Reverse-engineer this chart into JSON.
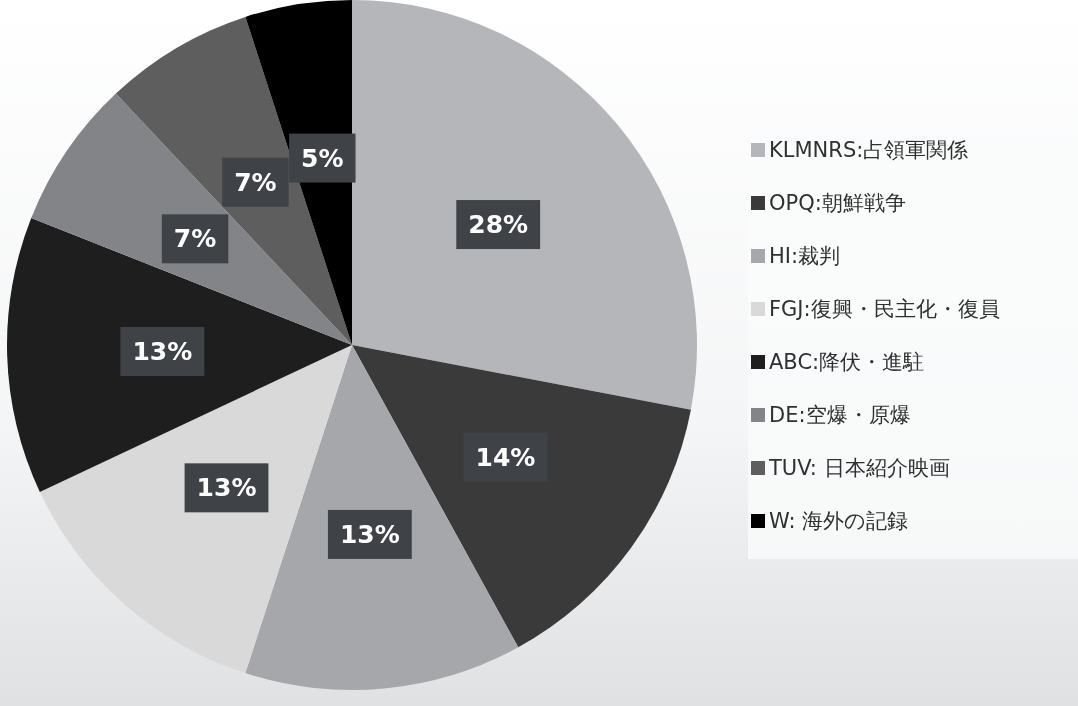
{
  "chart_data": {
    "type": "pie",
    "categories": [
      "KLMNRS:占領軍関係",
      "OPQ:朝鮮戦争",
      "HI:裁判",
      "FGJ:復興・民主化・復員",
      "ABC:降伏・進駐",
      "DE:空爆・原爆",
      "TUV: 日本紹介映画",
      "W: 海外の記録"
    ],
    "values": [
      28,
      14,
      13,
      13,
      13,
      7,
      7,
      5
    ],
    "colors": [
      "#b4b6b9",
      "#3a3a3a",
      "#a5a7aa",
      "#d9d9d9",
      "#1e1e1e",
      "#838488",
      "#5e5e5e",
      "#000000"
    ],
    "value_labels": [
      "28%",
      "14%",
      "13%",
      "13%",
      "13%",
      "7%",
      "7%",
      "5%"
    ],
    "legend": "right"
  }
}
